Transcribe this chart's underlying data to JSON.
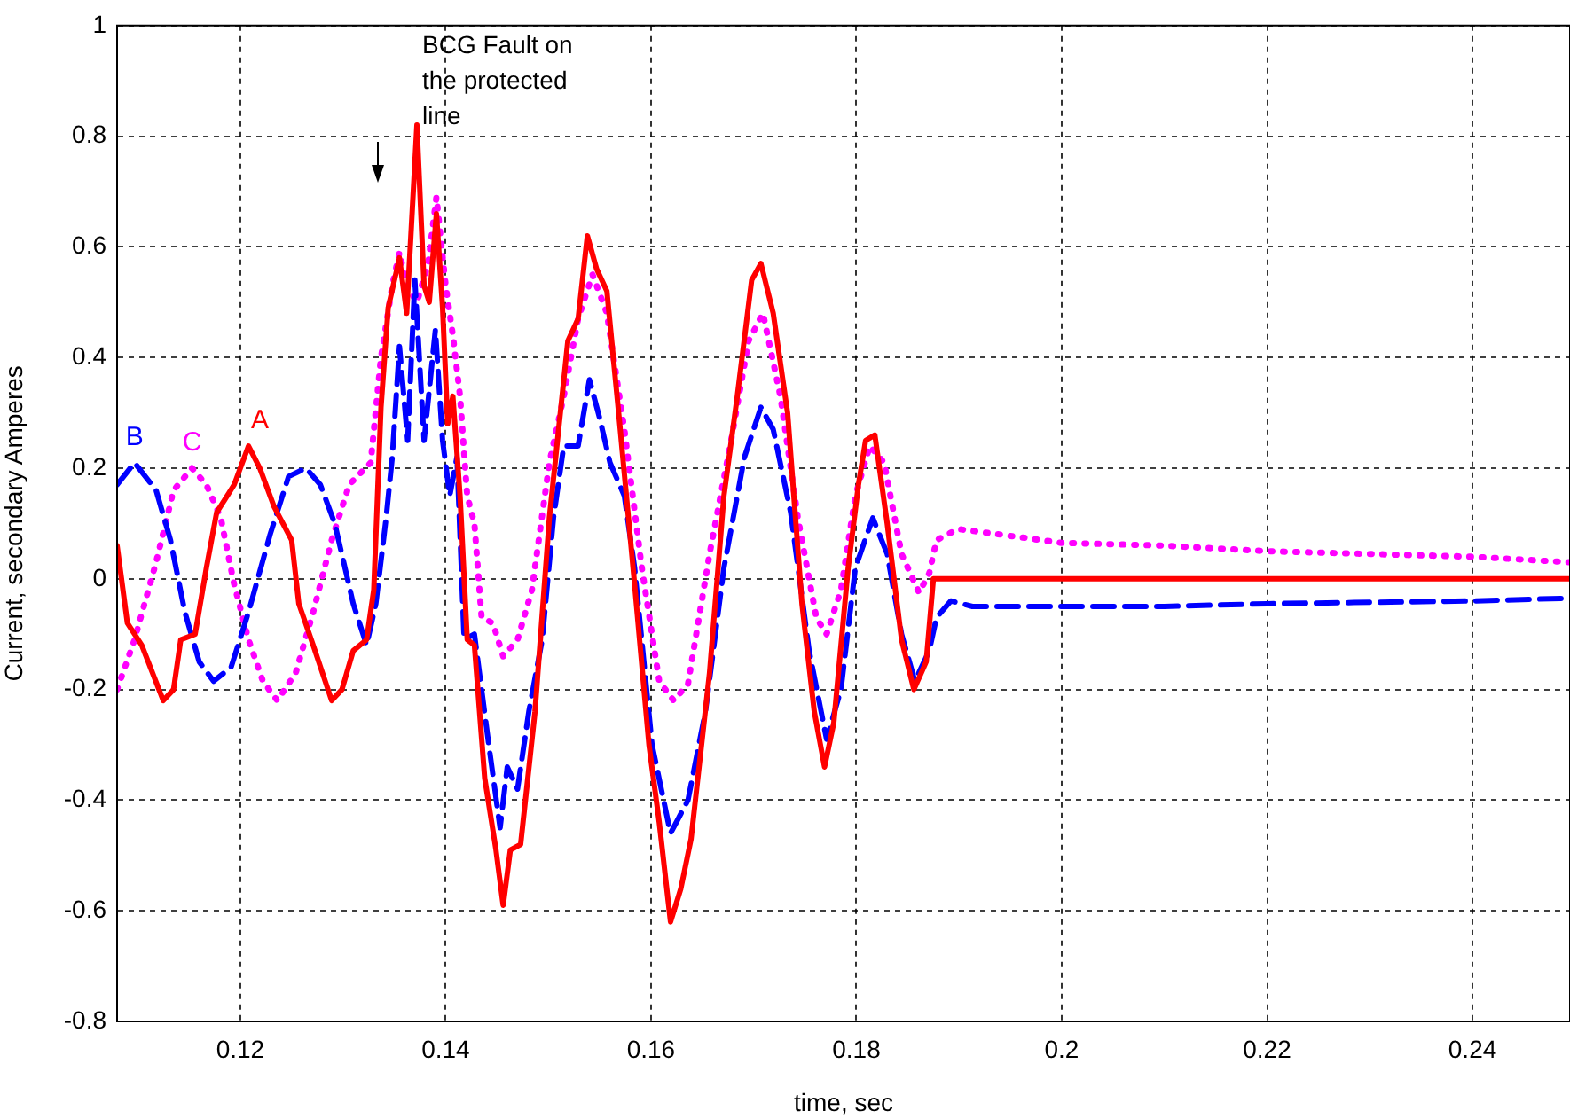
{
  "chart_data": {
    "type": "line",
    "xlabel": "time, sec",
    "ylabel": "Current, secondary Amperes",
    "xlim": [
      0.108,
      0.2495
    ],
    "xticks": [
      0.12,
      0.14,
      0.16,
      0.18,
      0.2,
      0.22,
      0.24
    ],
    "ylim": [
      -0.8,
      1
    ],
    "yticks": [
      -0.8,
      -0.6,
      -0.4,
      -0.2,
      0,
      0.2,
      0.4,
      0.6,
      0.8,
      1
    ],
    "grid": true,
    "legend": false,
    "annotations": [
      "BCG Fault on\nthe protected\nline"
    ],
    "series": [
      {
        "name": "A",
        "color": "#ff0000",
        "line_style": "solid",
        "x": [
          0.108,
          0.109,
          0.1104,
          0.1125,
          0.1135,
          0.1142,
          0.1156,
          0.1167,
          0.1177,
          0.1194,
          0.1208,
          0.1219,
          0.1233,
          0.125,
          0.1257,
          0.1271,
          0.1289,
          0.1299,
          0.131,
          0.1323,
          0.133,
          0.1337,
          0.1344,
          0.1355,
          0.1362,
          0.1372,
          0.1379,
          0.1384,
          0.1391,
          0.1397,
          0.1402,
          0.1407,
          0.1414,
          0.1421,
          0.1428,
          0.1438,
          0.1449,
          0.1456,
          0.1463,
          0.1473,
          0.1487,
          0.1501,
          0.1519,
          0.1529,
          0.1538,
          0.1547,
          0.1557,
          0.157,
          0.1584,
          0.1598,
          0.1608,
          0.1619,
          0.1629,
          0.1639,
          0.1657,
          0.1671,
          0.1684,
          0.1698,
          0.1707,
          0.1719,
          0.1733,
          0.1747,
          0.1759,
          0.1769,
          0.1778,
          0.1792,
          0.1802,
          0.1809,
          0.1818,
          0.183,
          0.1844,
          0.1856,
          0.1868,
          0.1875,
          0.19,
          0.2,
          0.22,
          0.2495
        ],
        "values": [
          0.06,
          -0.08,
          -0.12,
          -0.22,
          -0.2,
          -0.11,
          -0.1,
          0.02,
          0.12,
          0.17,
          0.24,
          0.2,
          0.13,
          0.07,
          -0.045,
          -0.12,
          -0.22,
          -0.2,
          -0.13,
          -0.11,
          -0.02,
          0.31,
          0.49,
          0.58,
          0.48,
          0.82,
          0.53,
          0.5,
          0.66,
          0.49,
          0.28,
          0.33,
          0.15,
          -0.11,
          -0.12,
          -0.36,
          -0.49,
          -0.59,
          -0.49,
          -0.48,
          -0.24,
          0.11,
          0.43,
          0.47,
          0.62,
          0.56,
          0.52,
          0.27,
          -0.01,
          -0.3,
          -0.44,
          -0.62,
          -0.56,
          -0.47,
          -0.17,
          0.15,
          0.33,
          0.54,
          0.57,
          0.48,
          0.3,
          -0.045,
          -0.24,
          -0.34,
          -0.26,
          0.02,
          0.17,
          0.25,
          0.26,
          0.1,
          -0.11,
          -0.2,
          -0.15,
          0,
          0,
          0,
          0,
          0
        ]
      },
      {
        "name": "B",
        "color": "#0000ff",
        "line_style": "dashed",
        "x": [
          0.108,
          0.1097,
          0.1118,
          0.1132,
          0.1146,
          0.116,
          0.1174,
          0.1191,
          0.1208,
          0.1229,
          0.1247,
          0.1264,
          0.1278,
          0.1292,
          0.131,
          0.1323,
          0.1332,
          0.1342,
          0.1348,
          0.1355,
          0.1363,
          0.137,
          0.1379,
          0.139,
          0.1397,
          0.1404,
          0.1411,
          0.1418,
          0.1428,
          0.1442,
          0.1453,
          0.146,
          0.147,
          0.1481,
          0.1494,
          0.1505,
          0.1515,
          0.1529,
          0.154,
          0.155,
          0.156,
          0.1574,
          0.1584,
          0.1601,
          0.1619,
          0.1636,
          0.1653,
          0.1671,
          0.1691,
          0.1707,
          0.1719,
          0.1736,
          0.1754,
          0.1771,
          0.1785,
          0.1799,
          0.1816,
          0.183,
          0.1844,
          0.1857,
          0.1871,
          0.1878,
          0.1892,
          0.1913,
          0.2,
          0.21,
          0.22,
          0.24,
          0.2495
        ],
        "values": [
          0.17,
          0.21,
          0.16,
          0.07,
          -0.06,
          -0.15,
          -0.185,
          -0.16,
          -0.06,
          0.08,
          0.185,
          0.2,
          0.17,
          0.1,
          -0.045,
          -0.12,
          -0.045,
          0.11,
          0.22,
          0.42,
          0.25,
          0.54,
          0.25,
          0.45,
          0.25,
          0.15,
          0.22,
          -0.11,
          -0.1,
          -0.3,
          -0.45,
          -0.34,
          -0.38,
          -0.24,
          -0.11,
          0.11,
          0.24,
          0.24,
          0.36,
          0.29,
          0.21,
          0.15,
          0.02,
          -0.3,
          -0.46,
          -0.4,
          -0.24,
          0.02,
          0.22,
          0.31,
          0.27,
          0.12,
          -0.13,
          -0.29,
          -0.2,
          0.02,
          0.11,
          0.045,
          -0.1,
          -0.185,
          -0.13,
          -0.07,
          -0.04,
          -0.05,
          -0.05,
          -0.05,
          -0.045,
          -0.04,
          -0.035
        ]
      },
      {
        "name": "C",
        "color": "#ff00ff",
        "line_style": "dotted",
        "x": [
          0.108,
          0.1097,
          0.1118,
          0.1135,
          0.1153,
          0.1167,
          0.1181,
          0.1194,
          0.1208,
          0.1222,
          0.1236,
          0.1254,
          0.1271,
          0.1289,
          0.1306,
          0.1327,
          0.1337,
          0.1348,
          0.1355,
          0.1362,
          0.1372,
          0.1383,
          0.1391,
          0.14,
          0.1407,
          0.1414,
          0.1421,
          0.1428,
          0.1435,
          0.1446,
          0.1456,
          0.147,
          0.1484,
          0.1501,
          0.1515,
          0.1529,
          0.1543,
          0.1557,
          0.1574,
          0.1591,
          0.1608,
          0.1622,
          0.1636,
          0.1657,
          0.1678,
          0.1695,
          0.1709,
          0.1726,
          0.1743,
          0.1761,
          0.1771,
          0.1785,
          0.1799,
          0.1813,
          0.1827,
          0.1844,
          0.1861,
          0.1871,
          0.1878,
          0.1899,
          0.192,
          0.2,
          0.21,
          0.22,
          0.23,
          0.24,
          0.2495
        ],
        "values": [
          -0.2,
          -0.11,
          0.03,
          0.16,
          0.2,
          0.17,
          0.11,
          -0.01,
          -0.11,
          -0.185,
          -0.22,
          -0.17,
          -0.06,
          0.07,
          0.17,
          0.21,
          0.4,
          0.53,
          0.59,
          0.53,
          0.5,
          0.57,
          0.69,
          0.53,
          0.44,
          0.33,
          0.15,
          0.1,
          -0.07,
          -0.08,
          -0.14,
          -0.11,
          -0.02,
          0.21,
          0.33,
          0.47,
          0.55,
          0.48,
          0.27,
          0.02,
          -0.185,
          -0.22,
          -0.19,
          0.045,
          0.25,
          0.43,
          0.48,
          0.33,
          0.11,
          -0.07,
          -0.1,
          -0.02,
          0.15,
          0.24,
          0.21,
          0.045,
          -0.025,
          0.01,
          0.07,
          0.09,
          0.085,
          0.065,
          0.06,
          0.05,
          0.045,
          0.04,
          0.03
        ]
      }
    ]
  }
}
